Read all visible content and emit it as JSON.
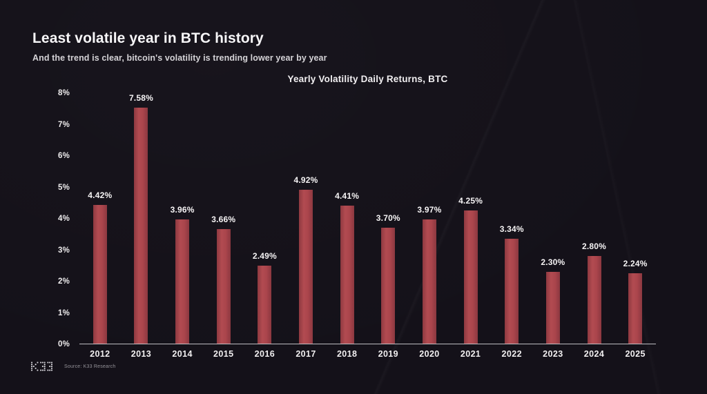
{
  "page": {
    "title": "Least volatile year in BTC history",
    "subtitle": "And the trend is clear, bitcoin's volatility is trending lower year by year"
  },
  "footer": {
    "logo": "k33-dot-matrix-logo",
    "source": "Source: K33 Research"
  },
  "colors": {
    "background": "#141119",
    "bar": "#a9444b",
    "axis_line": "#dedde2",
    "title_text": "#f7f6f8",
    "subtitle_text": "#d5d3d7"
  },
  "chart_data": {
    "type": "bar",
    "title": "Yearly Volatility Daily Returns, BTC",
    "categories": [
      "2012",
      "2013",
      "2014",
      "2015",
      "2016",
      "2017",
      "2018",
      "2019",
      "2020",
      "2021",
      "2022",
      "2023",
      "2024",
      "2025"
    ],
    "values": [
      4.42,
      7.58,
      3.96,
      3.66,
      2.49,
      4.92,
      4.41,
      3.7,
      3.97,
      4.25,
      3.34,
      2.3,
      2.8,
      2.24
    ],
    "value_labels": [
      "4.42%",
      "7.58%",
      "3.96%",
      "3.66%",
      "2.49%",
      "4.92%",
      "4.41%",
      "3.70%",
      "3.97%",
      "4.25%",
      "3.34%",
      "2.30%",
      "2.80%",
      "2.24%"
    ],
    "xlabel": "",
    "ylabel": "",
    "ylim": [
      0,
      8
    ],
    "y_ticks": [
      "0%",
      "1%",
      "2%",
      "3%",
      "4%",
      "5%",
      "6%",
      "7%",
      "8%"
    ],
    "grid": false,
    "legend": false,
    "bar_color": "#a9444b"
  }
}
